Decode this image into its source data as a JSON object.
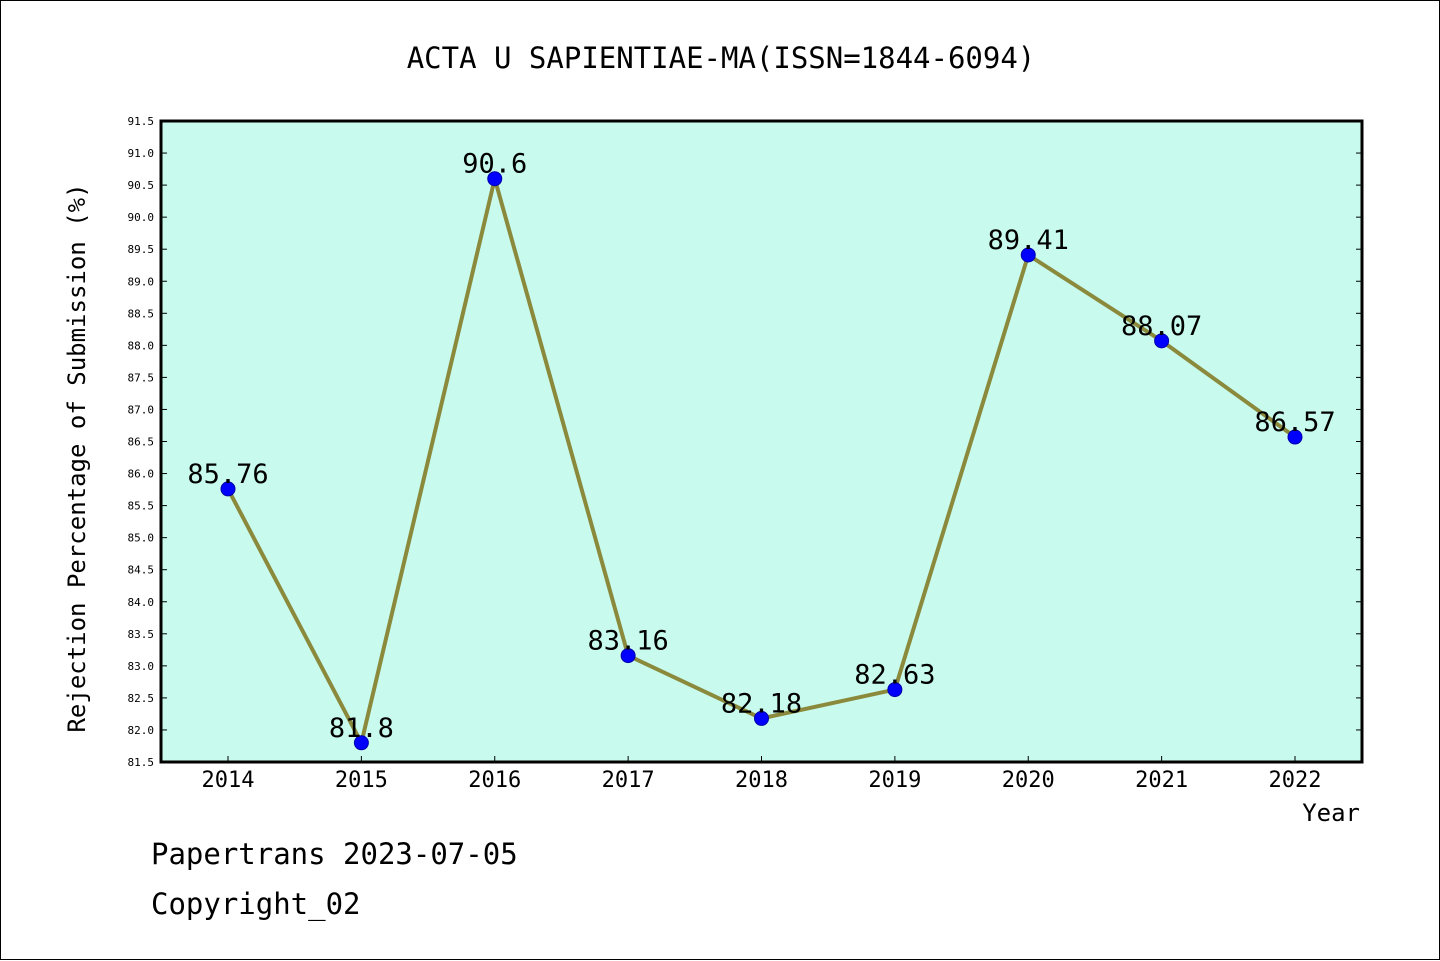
{
  "chart_data": {
    "type": "line",
    "title": "ACTA U SAPIENTIAE-MA(ISSN=1844-6094)",
    "xlabel": "Year",
    "ylabel": "Rejection Percentage of Submission (%)",
    "categories": [
      "2014",
      "2015",
      "2016",
      "2017",
      "2018",
      "2019",
      "2020",
      "2021",
      "2022"
    ],
    "values": [
      85.76,
      81.8,
      90.6,
      83.16,
      82.18,
      82.63,
      89.41,
      88.07,
      86.57
    ],
    "data_labels": [
      "85.76",
      "81.8",
      "90.6",
      "83.16",
      "82.18",
      "82.63",
      "89.41",
      "88.07",
      "86.57"
    ],
    "ylim": [
      81.5,
      91.5
    ],
    "yticks": [
      "81.5",
      "82.0",
      "82.5",
      "83.0",
      "83.5",
      "84.0",
      "84.5",
      "85.0",
      "85.5",
      "86.0",
      "86.5",
      "87.0",
      "87.5",
      "88.0",
      "88.5",
      "89.0",
      "89.5",
      "90.0",
      "90.5",
      "91.0",
      "91.5"
    ],
    "grid": false,
    "legend": "none",
    "colors": {
      "plot_background": "#c8fbee",
      "line": "#8b8a3c",
      "marker": "#0000ff",
      "axis": "#000000"
    }
  },
  "footer": {
    "watermark": "Papertrans 2023-07-05",
    "copyright": "Copyright_02"
  }
}
